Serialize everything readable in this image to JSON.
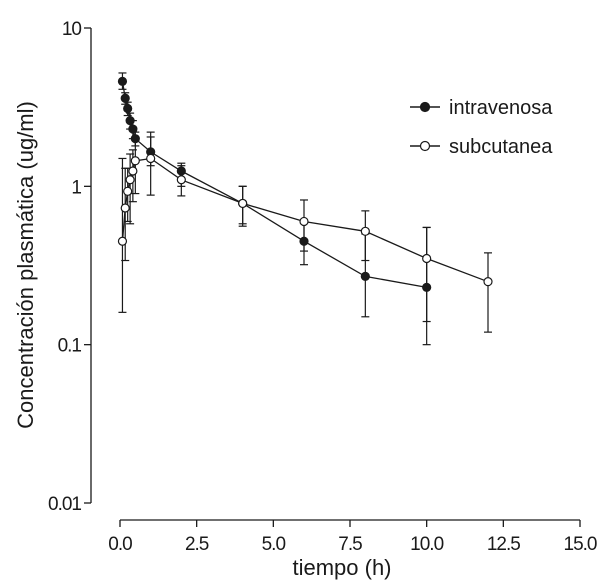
{
  "chart_data": {
    "type": "scatter",
    "xlabel": "tiempo (h)",
    "ylabel": "Concentración plasmática (ug/ml)",
    "xlim": [
      0,
      15
    ],
    "ylim": [
      0.01,
      10
    ],
    "yscale": "log",
    "grid": false,
    "legend_position": "top-right",
    "x_ticks": [
      {
        "value": 0,
        "label": "0.0"
      },
      {
        "value": 2.5,
        "label": "2.5"
      },
      {
        "value": 5,
        "label": "5.0"
      },
      {
        "value": 7.5,
        "label": "7.5"
      },
      {
        "value": 10,
        "label": "10.0"
      },
      {
        "value": 12.5,
        "label": "12.5"
      },
      {
        "value": 15,
        "label": "15.0"
      }
    ],
    "y_ticks": [
      {
        "value": 10,
        "label": "10"
      },
      {
        "value": 1,
        "label": "1"
      },
      {
        "value": 0.1,
        "label": "0.1"
      },
      {
        "value": 0.01,
        "label": "0.01"
      }
    ],
    "series": [
      {
        "name": "intravenosa",
        "marker": "filled-circle",
        "color": "#1a1a1a",
        "x": [
          0.08,
          0.17,
          0.25,
          0.33,
          0.42,
          0.5,
          1.0,
          2.0,
          4.0,
          6.0,
          8.0,
          10.0
        ],
        "y": [
          4.6,
          3.6,
          3.1,
          2.6,
          2.3,
          2.0,
          1.65,
          1.25,
          0.78,
          0.45,
          0.27,
          0.23
        ],
        "err_lo": [
          4.1,
          3.3,
          2.8,
          2.3,
          2.0,
          1.8,
          1.35,
          1.0,
          0.58,
          0.32,
          0.15,
          0.1
        ],
        "err_hi": [
          5.2,
          3.9,
          3.4,
          2.9,
          2.6,
          2.2,
          2.05,
          1.4,
          1.0,
          0.6,
          0.5,
          0.55
        ]
      },
      {
        "name": "subcutanea",
        "marker": "open-circle",
        "color": "#1a1a1a",
        "x": [
          0.08,
          0.17,
          0.25,
          0.33,
          0.42,
          0.5,
          1.0,
          2.0,
          4.0,
          6.0,
          8.0,
          10.0,
          12.0
        ],
        "y": [
          0.45,
          0.73,
          0.93,
          1.1,
          1.25,
          1.45,
          1.5,
          1.1,
          0.78,
          0.6,
          0.52,
          0.35,
          0.25
        ],
        "err_lo": [
          0.16,
          0.34,
          0.6,
          0.58,
          0.8,
          0.9,
          0.88,
          0.87,
          0.56,
          0.39,
          0.34,
          0.14,
          0.12
        ],
        "err_hi": [
          1.5,
          1.3,
          1.3,
          1.6,
          1.7,
          2.0,
          2.2,
          1.35,
          1.0,
          0.82,
          0.7,
          0.55,
          0.38
        ]
      }
    ]
  }
}
